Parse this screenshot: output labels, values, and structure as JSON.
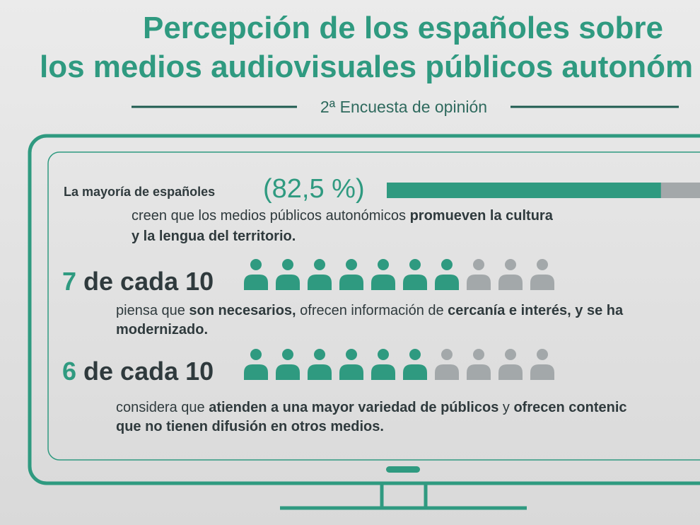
{
  "header": {
    "title_line1": "Percepción de los españoles sobre",
    "title_line2": "los medios audiovisuales públicos autonóm",
    "subtitle": "2ª Encuesta de opinión"
  },
  "stat1": {
    "lead": "La mayoría de españoles",
    "value": 82.5,
    "value_label": "(82,5 %)",
    "lines": [
      [
        {
          "text": "creen que los medios públicos autonómicos ",
          "bold": false
        },
        {
          "text": "promueven la cultura",
          "bold": true
        }
      ],
      [
        {
          "text": "y la lengua del territorio.",
          "bold": true
        }
      ]
    ]
  },
  "rows": [
    {
      "count": 7,
      "middle": "de cada",
      "total": 10,
      "lines": [
        [
          {
            "text": "piensa que ",
            "bold": false
          },
          {
            "text": "son necesarios,",
            "bold": true
          },
          {
            "text": " ofrecen información de ",
            "bold": false
          },
          {
            "text": "cercanía e interés, y se ha",
            "bold": true
          }
        ],
        [
          {
            "text": "modernizado.",
            "bold": true
          }
        ]
      ]
    },
    {
      "count": 6,
      "middle": "de cada",
      "total": 10,
      "lines": [
        [
          {
            "text": "considera que ",
            "bold": false
          },
          {
            "text": "atienden a una mayor variedad de públicos",
            "bold": true
          },
          {
            "text": " y ",
            "bold": false
          },
          {
            "text": "ofrecen contenic",
            "bold": true
          }
        ],
        [
          {
            "text": "que no tienen difusión en otros medios.",
            "bold": true
          }
        ]
      ]
    }
  ],
  "colors": {
    "accent": "#2f9a80",
    "muted": "#a3a8aa",
    "text": "#2f3a3d"
  }
}
